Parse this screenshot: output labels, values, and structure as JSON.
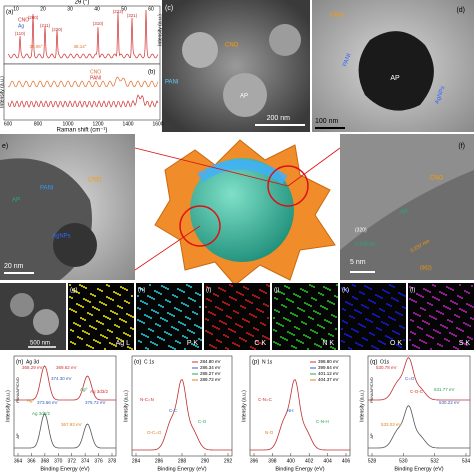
{
  "panels": {
    "a": {
      "label": "(a)",
      "top_axis": "2θ (°)",
      "top_ticks": [
        "10",
        "20",
        "30",
        "40",
        "50",
        "60"
      ],
      "legend": [
        "CNO",
        "Ag"
      ],
      "peaks": [
        "(110)",
        "(200)",
        "(211)",
        "(220)",
        "(310)",
        "(222)",
        "(321)"
      ],
      "shifts": [
        "38.06°",
        "38.14°"
      ]
    },
    "b": {
      "label": "(b)",
      "legend": [
        "CNO",
        "PANI"
      ],
      "x_label": "Raman shift (cm⁻¹)",
      "x_ticks": [
        "600",
        "800",
        "1000",
        "1200",
        "1400",
        "1600"
      ],
      "y_label": "Intensity (a.u.)"
    },
    "c": {
      "label": "(c)",
      "labels": [
        "PANI",
        "AP",
        "CNO"
      ],
      "scale": "200 nm",
      "y_label": "Intensity (a.u.)"
    },
    "d": {
      "label": "(d)",
      "labels": [
        "CNO",
        "AP",
        "AgNPs",
        "PANI"
      ],
      "scale": "100 nm"
    },
    "e": {
      "label": "e)",
      "labels": [
        "AP",
        "PANI",
        "CNO",
        "AgNPs"
      ],
      "scale": "20 nm"
    },
    "f": {
      "label": "(f)",
      "labels": [
        "CNO",
        "AP",
        "(320)",
        "0.166 nm",
        "0.237 nm",
        "(002)"
      ],
      "scale": "5 nm"
    },
    "maps": {
      "scale": "500 nm",
      "items": [
        {
          "label": "(g)",
          "element": "Ag L"
        },
        {
          "label": "(h)",
          "element": "P K"
        },
        {
          "label": "(i)",
          "element": "C K"
        },
        {
          "label": "(j)",
          "element": "N K"
        },
        {
          "label": "(k)",
          "element": "O K"
        },
        {
          "label": "(l)",
          "element": "S K"
        }
      ]
    },
    "n": {
      "label": "(n)",
      "title": "Ag 3d",
      "side_labels": [
        "PANI/AP/CNO",
        "AP"
      ],
      "labels": [
        "368.29 eV",
        "374.30 eV",
        "Ag⁰",
        "Ag⁰",
        "369.62 eV",
        "375.72 eV",
        "Ag 3d5/2",
        "367.93 eV",
        "Ag 3d3/2",
        "373.66 eV"
      ],
      "x_ticks": [
        "364",
        "366",
        "368",
        "370",
        "372",
        "374",
        "376",
        "378"
      ],
      "x_label": "Binding Energy (eV)",
      "y_label": "Intensity (a.u.)"
    },
    "o": {
      "label": "(o)",
      "title": "C 1s",
      "legend": [
        "284.80 eV",
        "286.34 eV",
        "288.27 eV",
        "289.72 eV"
      ],
      "labels": [
        "N-C=N",
        "C-C",
        "C-O",
        "O-C=O"
      ],
      "x_ticks": [
        "284",
        "286",
        "288",
        "290",
        "292"
      ],
      "x_label": "Binding Energy (eV)",
      "y_label": "Intensity (a.u.)"
    },
    "p": {
      "label": "(p)",
      "title": "N 1s",
      "legend": [
        "398.80 eV",
        "399.64 eV",
        "401.12 eV",
        "404.37 eV"
      ],
      "labels": [
        "C-N=C",
        "NH",
        "C-N-H",
        "N-O"
      ],
      "x_ticks": [
        "396",
        "398",
        "400",
        "402",
        "404",
        "406"
      ],
      "x_label": "Binding Energy (eV)",
      "y_label": "Intensity (a.u.)"
    },
    "q": {
      "label": "(q)",
      "title": "O1s",
      "side_labels": [
        "PANI/AP/CNO",
        "AP"
      ],
      "labels": [
        "530.78 eV",
        "C=O",
        "531.77 eV",
        "533.03 eV",
        "C-O-C",
        "530.22 eV"
      ],
      "x_ticks": [
        "528",
        "530",
        "532",
        "534"
      ],
      "x_label": "Binding Energy (eV)",
      "y_label": "Intensity (a.u.)"
    }
  }
}
